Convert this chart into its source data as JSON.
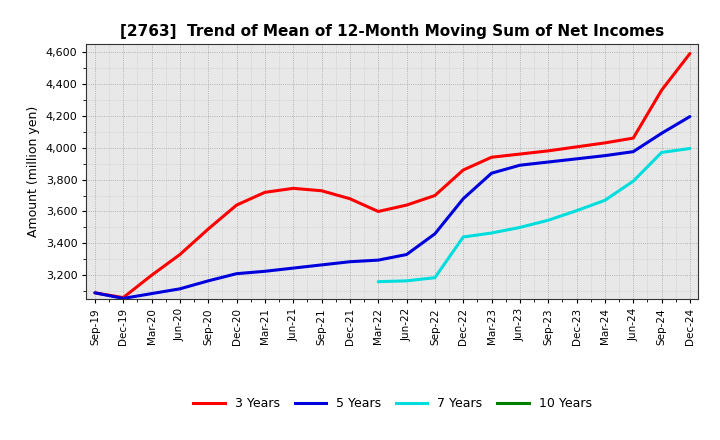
{
  "title": "[2763]  Trend of Mean of 12-Month Moving Sum of Net Incomes",
  "ylabel": "Amount (million yen)",
  "background_color": "#ffffff",
  "plot_background": "#e8e8e8",
  "grid_color": "#999999",
  "ylim": [
    3050,
    4650
  ],
  "yticks": [
    3200,
    3400,
    3600,
    3800,
    4000,
    4200,
    4400,
    4600
  ],
  "x_labels": [
    "Sep-19",
    "Dec-19",
    "Mar-20",
    "Jun-20",
    "Sep-20",
    "Dec-20",
    "Mar-21",
    "Jun-21",
    "Sep-21",
    "Dec-21",
    "Mar-22",
    "Jun-22",
    "Sep-22",
    "Dec-22",
    "Mar-23",
    "Jun-23",
    "Sep-23",
    "Dec-23",
    "Mar-24",
    "Jun-24",
    "Sep-24",
    "Dec-24"
  ],
  "series": {
    "3 Years": {
      "color": "#ff0000",
      "linewidth": 2.2,
      "data_x": [
        0,
        1,
        2,
        3,
        4,
        5,
        6,
        7,
        8,
        9,
        10,
        11,
        12,
        13,
        14,
        15,
        16,
        17,
        18,
        19,
        20,
        21
      ],
      "data_y": [
        3090,
        3060,
        3200,
        3330,
        3490,
        3640,
        3720,
        3745,
        3730,
        3680,
        3600,
        3640,
        3700,
        3860,
        3940,
        3960,
        3980,
        4005,
        4030,
        4060,
        4360,
        4590
      ]
    },
    "5 Years": {
      "color": "#0000dd",
      "linewidth": 2.2,
      "data_x": [
        0,
        1,
        2,
        3,
        4,
        5,
        6,
        7,
        8,
        9,
        10,
        11,
        12,
        13,
        14,
        15,
        16,
        17,
        18,
        19,
        20,
        21
      ],
      "data_y": [
        3090,
        3055,
        3085,
        3115,
        3165,
        3210,
        3225,
        3245,
        3265,
        3285,
        3295,
        3330,
        3460,
        3680,
        3840,
        3890,
        3910,
        3930,
        3950,
        3975,
        4090,
        4195
      ]
    },
    "7 Years": {
      "color": "#00dddd",
      "linewidth": 2.2,
      "data_x": [
        10,
        11,
        12,
        13,
        14,
        15,
        16,
        17,
        18,
        19,
        20,
        21
      ],
      "data_y": [
        3160,
        3165,
        3185,
        3440,
        3465,
        3500,
        3545,
        3605,
        3670,
        3790,
        3970,
        3995
      ]
    },
    "10 Years": {
      "color": "#008000",
      "linewidth": 2.2,
      "data_x": [],
      "data_y": []
    }
  },
  "legend": {
    "labels": [
      "3 Years",
      "5 Years",
      "7 Years",
      "10 Years"
    ],
    "colors": [
      "#ff0000",
      "#0000dd",
      "#00dddd",
      "#008000"
    ]
  }
}
